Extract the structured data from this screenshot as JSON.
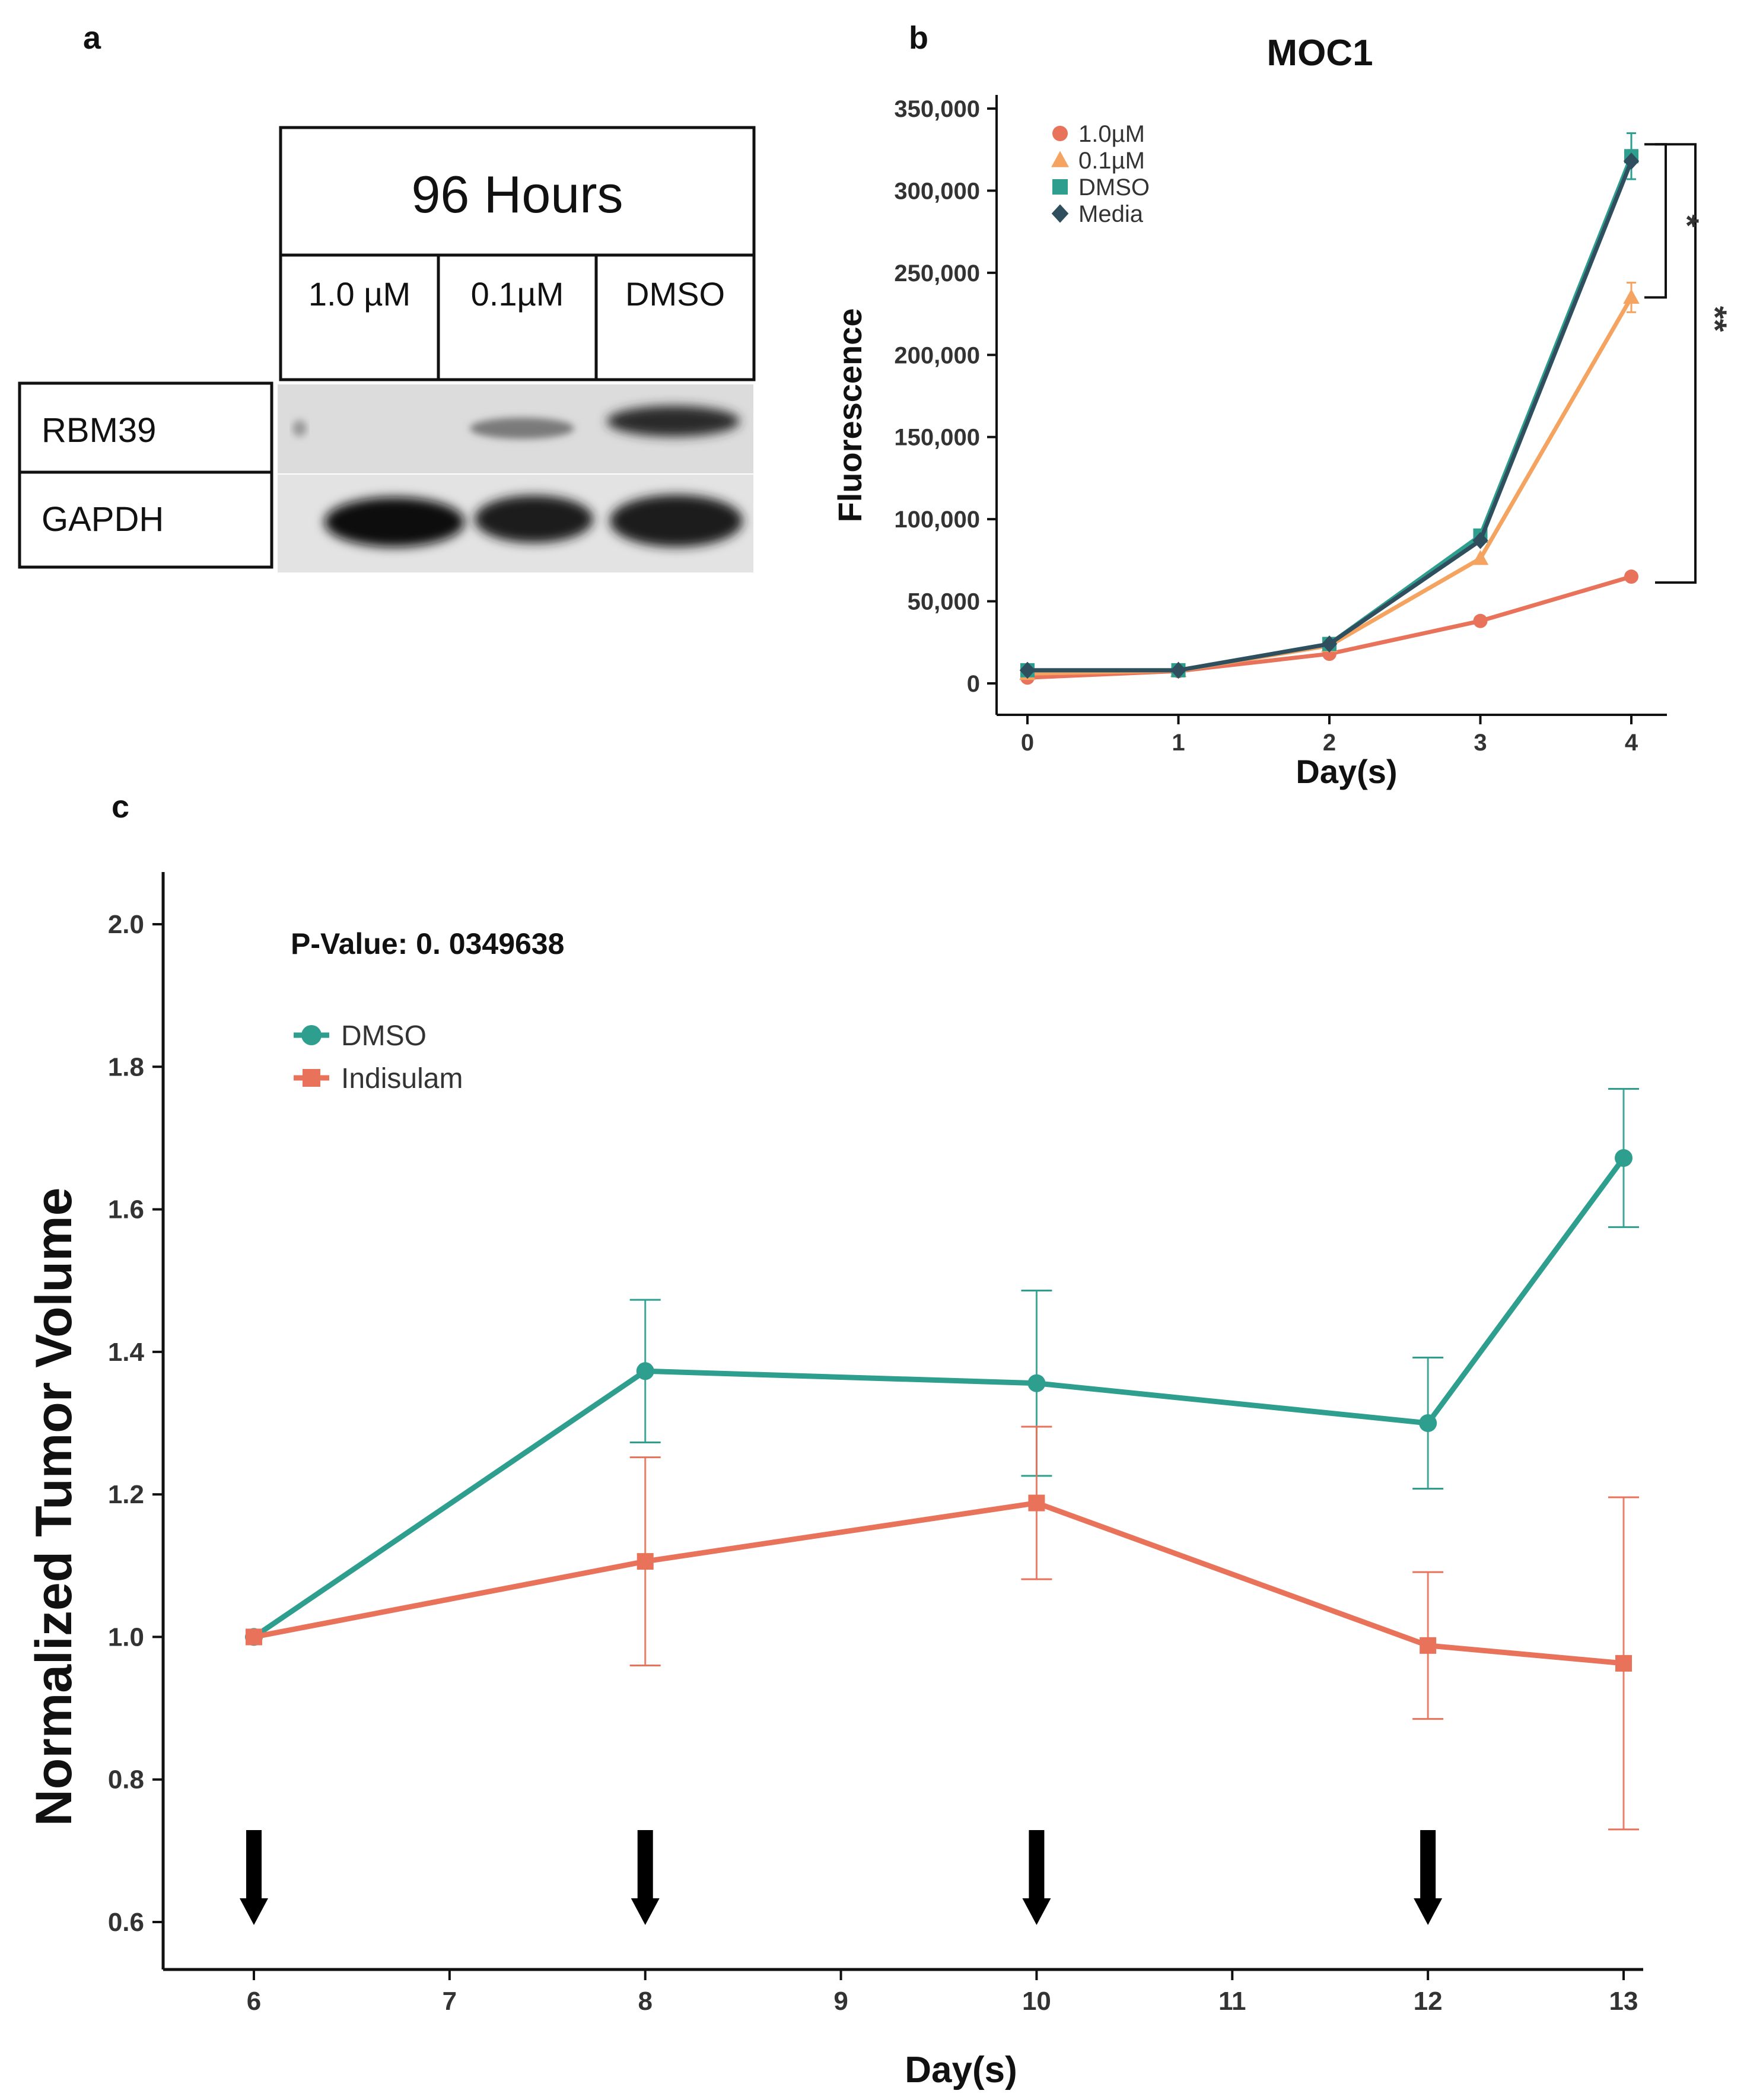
{
  "panels": {
    "a": "a",
    "b": "b",
    "c": "c"
  },
  "western_blot": {
    "timepoint": "96 Hours",
    "conditions": [
      "1.0 µM",
      "0.1µM",
      "DMSO"
    ],
    "proteins": [
      "RBM39",
      "GAPDH"
    ]
  },
  "chart_data": [
    {
      "type": "line",
      "title": "MOC1",
      "xlabel": "Day(s)",
      "ylabel": "Fluorescence",
      "x": [
        0,
        1,
        2,
        3,
        4
      ],
      "xticks": [
        "0",
        "1",
        "2",
        "3",
        "4"
      ],
      "ylim": [
        0,
        350000
      ],
      "yticks": [
        "0",
        "50,000",
        "100,000",
        "150,000",
        "200,000",
        "250,000",
        "300,000",
        "350,000"
      ],
      "legend_position": "top-left",
      "series": [
        {
          "name": "1.0µM",
          "values": [
            3500,
            7500,
            18000,
            38000,
            65000
          ],
          "color": "#E8735A",
          "marker": "circle"
        },
        {
          "name": "0.1µM",
          "values": [
            6000,
            7800,
            23000,
            76000,
            235000
          ],
          "err": [
            0,
            0,
            0,
            0,
            9000
          ],
          "color": "#F4A460",
          "marker": "triangle"
        },
        {
          "name": "DMSO",
          "values": [
            8000,
            8000,
            24000,
            90000,
            321000
          ],
          "err": [
            0,
            0,
            0,
            0,
            14000
          ],
          "color": "#2E9E8F",
          "marker": "square"
        },
        {
          "name": "Media",
          "values": [
            8000,
            8000,
            24000,
            87000,
            318000
          ],
          "color": "#2F4F5F",
          "marker": "diamond"
        }
      ],
      "significance": [
        "*",
        "**"
      ]
    },
    {
      "type": "line",
      "annotation": "P-Value: 0. 0349638",
      "xlabel": "Day(s)",
      "ylabel": "Normalized Tumor Volume",
      "x": [
        6,
        8,
        10,
        12,
        13
      ],
      "xticks": [
        "6",
        "7",
        "8",
        "9",
        "10",
        "11",
        "12",
        "13"
      ],
      "ylim": [
        0.6,
        2.0
      ],
      "yticks": [
        "0.6",
        "0.8",
        "1.0",
        "1.2",
        "1.4",
        "1.6",
        "1.8",
        "2.0"
      ],
      "legend_position": "top-left",
      "dosing_days": [
        6,
        8,
        10,
        12
      ],
      "series": [
        {
          "name": "DMSO",
          "values": [
            1.0,
            1.373,
            1.356,
            1.3,
            1.672
          ],
          "err": [
            0,
            0.1,
            0.13,
            0.092,
            0.097
          ],
          "color": "#2E9E8F",
          "marker": "circle"
        },
        {
          "name": "Indisulam",
          "values": [
            1.0,
            1.106,
            1.188,
            0.988,
            0.963
          ],
          "err": [
            0,
            0.146,
            0.107,
            0.103,
            0.233
          ],
          "color": "#E8735A",
          "marker": "square"
        }
      ]
    }
  ]
}
